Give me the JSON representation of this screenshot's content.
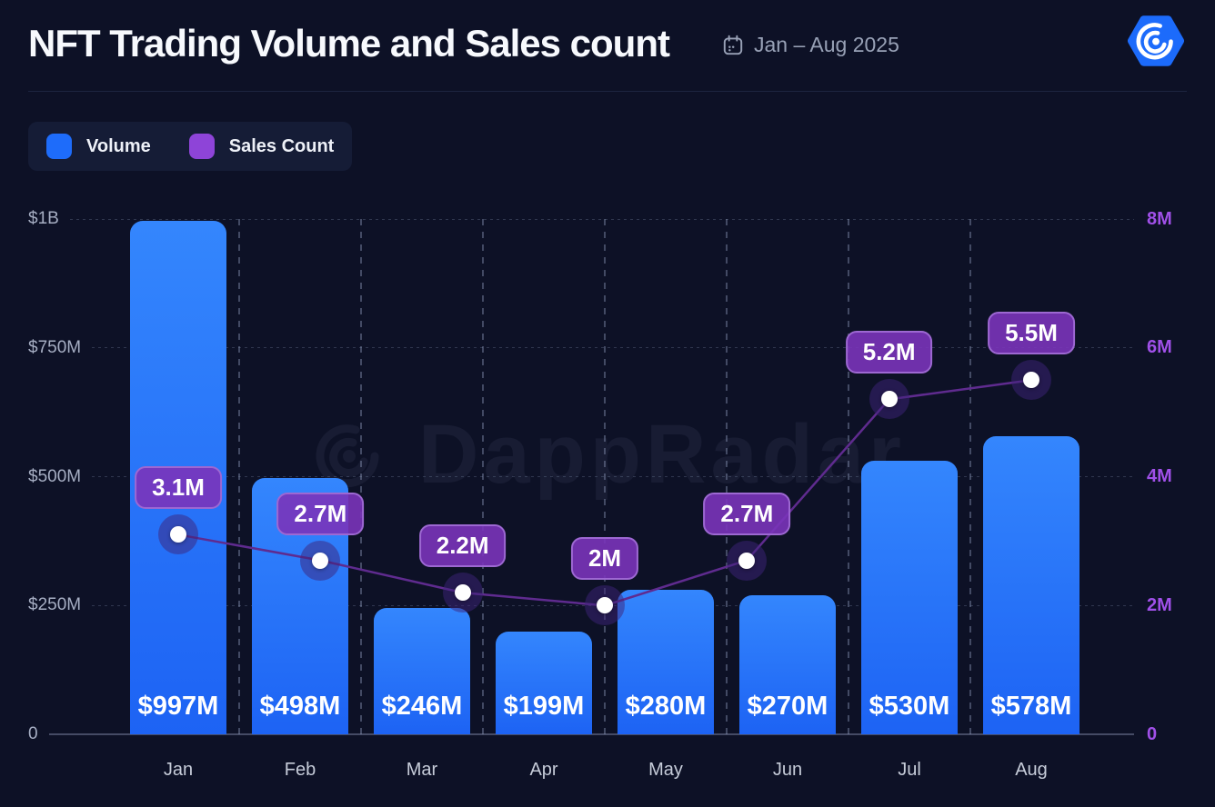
{
  "header": {
    "title": "NFT Trading Volume and Sales count",
    "date_range": "Jan – Aug 2025",
    "logo_name": "DappRadar"
  },
  "legend": {
    "items": [
      {
        "label": "Volume",
        "color": "#1e6cfa"
      },
      {
        "label": "Sales Count",
        "color": "#8e44d8"
      }
    ]
  },
  "watermark": {
    "text": "DappRadar"
  },
  "chart_data": {
    "type": "bar+line",
    "title": "NFT Trading Volume and Sales count",
    "period": "Jan – Aug 2025",
    "categories": [
      "Jan",
      "Feb",
      "Mar",
      "Apr",
      "May",
      "Jun",
      "Jul",
      "Aug"
    ],
    "series": [
      {
        "name": "Volume",
        "type": "bar",
        "axis": "left",
        "values_musd": [
          997,
          498,
          246,
          199,
          280,
          270,
          530,
          578
        ],
        "labels": [
          "$997M",
          "$498M",
          "$246M",
          "$199M",
          "$280M",
          "$270M",
          "$530M",
          "$578M"
        ],
        "color": "#1e6cfa"
      },
      {
        "name": "Sales Count",
        "type": "line",
        "axis": "right",
        "values_m": [
          3.1,
          2.7,
          2.2,
          2,
          2.7,
          5.2,
          5.5
        ],
        "labels": [
          "3.1M",
          "2.7M",
          "2.2M",
          "2M",
          "2.7M",
          "5.2M",
          "5.5M"
        ],
        "x_layout": "7 points spread evenly from Jan center to Aug center",
        "color": "#5f2b8f",
        "point_color": "#ffffff",
        "label_bg": "#7a34ba"
      }
    ],
    "left_axis": {
      "ticks": [
        "$1B",
        "$750M",
        "$500M",
        "$250M",
        "0"
      ],
      "values_musd": [
        1000,
        750,
        500,
        250,
        0
      ],
      "max_musd": 1000,
      "color": "#a6aec3"
    },
    "right_axis": {
      "ticks": [
        "8M",
        "6M",
        "4M",
        "2M",
        "0"
      ],
      "values_m": [
        8,
        6,
        4,
        2,
        0
      ],
      "max_m": 8,
      "color": "#a050e8"
    },
    "grid": {
      "horizontal": "dotted lines at each left-axis tick",
      "vertical": "dashed lines at month boundaries"
    },
    "legend_position": "top-left"
  }
}
